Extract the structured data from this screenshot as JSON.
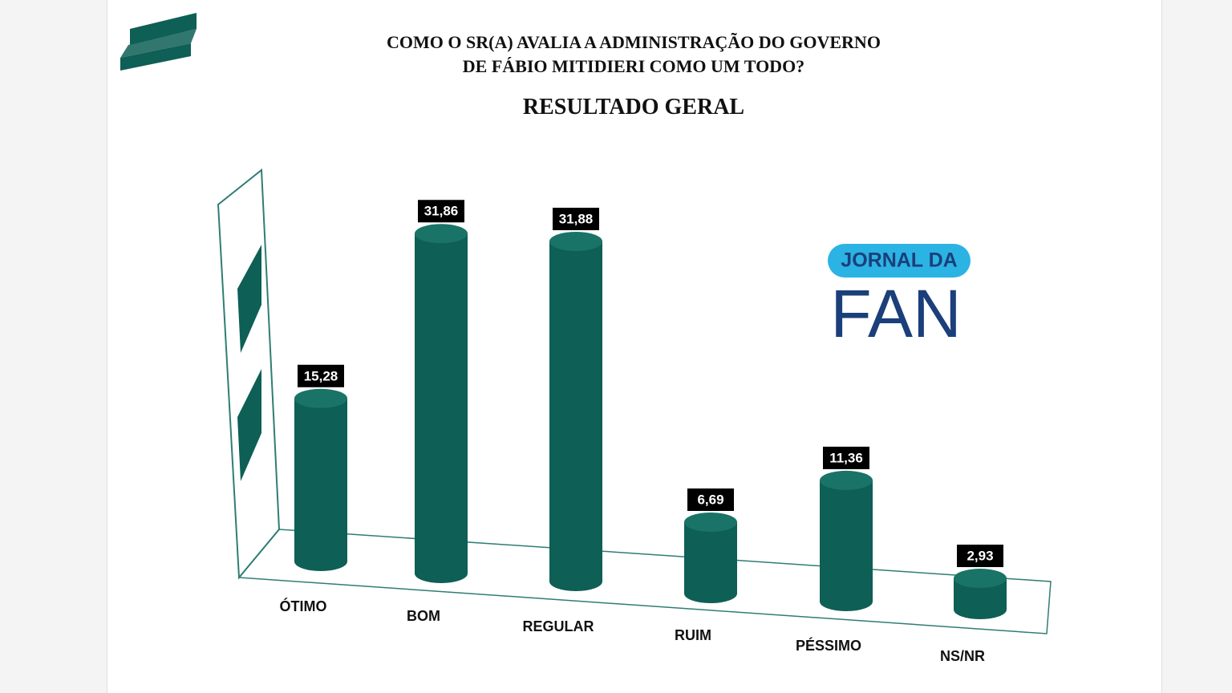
{
  "chart_data": {
    "type": "bar3d",
    "title": "COMO O SR(A) AVALIA A ADMINISTRAÇÃO DO GOVERNO DE FÁBIO MITIDIERI COMO UM TODO?",
    "subtitle": "RESULTADO GERAL",
    "categories": [
      "ÓTIMO",
      "BOM",
      "REGULAR",
      "RUIM",
      "PÉSSIMO",
      "NS/NR"
    ],
    "values": [
      15.28,
      31.86,
      31.88,
      6.69,
      11.36,
      2.93
    ],
    "value_labels": [
      "15,28",
      "31,86",
      "31,88",
      "6,69",
      "11,36",
      "2,93"
    ],
    "color": "#0e5f56",
    "watermark": {
      "badge": "JORNAL DA",
      "name": "FAN"
    }
  }
}
